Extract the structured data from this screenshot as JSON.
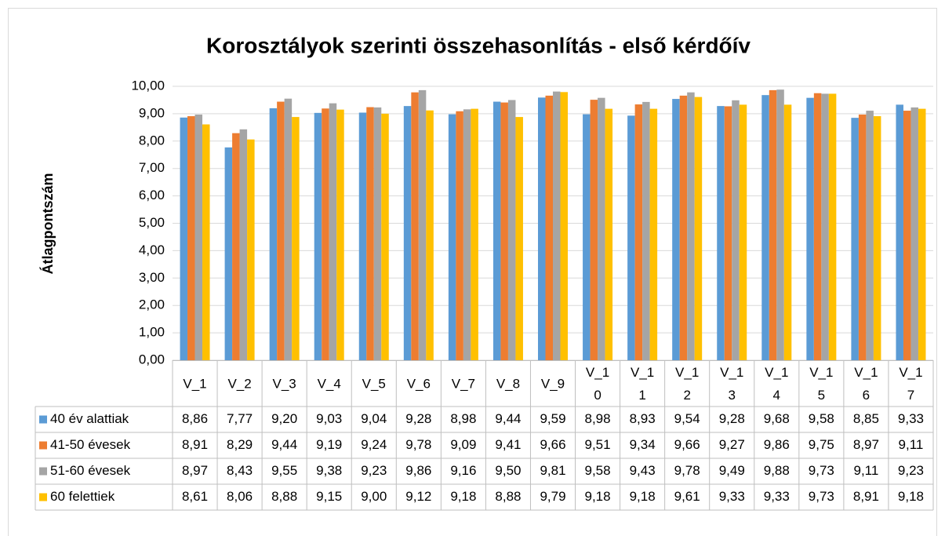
{
  "chart_data": {
    "type": "bar",
    "title": "Korosztályok szerinti összehasonlítás - első kérdőív",
    "y_label": "Átlagpontszám",
    "categories": [
      "V_1",
      "V_2",
      "V_3",
      "V_4",
      "V_5",
      "V_6",
      "V_7",
      "V_8",
      "V_9",
      "V_10",
      "V_11",
      "V_12",
      "V_13",
      "V_14",
      "V_15",
      "V_16",
      "V_17"
    ],
    "series": [
      {
        "name": "40 év alattiak",
        "color": "#5b9bd5",
        "values": [
          8.86,
          7.77,
          9.2,
          9.03,
          9.04,
          9.28,
          8.98,
          9.44,
          9.59,
          8.98,
          8.93,
          9.54,
          9.28,
          9.68,
          9.58,
          8.85,
          9.33
        ],
        "value_labels": [
          "8,86",
          "7,77",
          "9,20",
          "9,03",
          "9,04",
          "9,28",
          "8,98",
          "9,44",
          "9,59",
          "8,98",
          "8,93",
          "9,54",
          "9,28",
          "9,68",
          "9,58",
          "8,85",
          "9,33"
        ]
      },
      {
        "name": "41-50 évesek",
        "color": "#ed7d31",
        "values": [
          8.91,
          8.29,
          9.44,
          9.19,
          9.24,
          9.78,
          9.09,
          9.41,
          9.66,
          9.51,
          9.34,
          9.66,
          9.27,
          9.86,
          9.75,
          8.97,
          9.11
        ],
        "value_labels": [
          "8,91",
          "8,29",
          "9,44",
          "9,19",
          "9,24",
          "9,78",
          "9,09",
          "9,41",
          "9,66",
          "9,51",
          "9,34",
          "9,66",
          "9,27",
          "9,86",
          "9,75",
          "8,97",
          "9,11"
        ]
      },
      {
        "name": "51-60 évesek",
        "color": "#a5a5a5",
        "values": [
          8.97,
          8.43,
          9.55,
          9.38,
          9.23,
          9.86,
          9.16,
          9.5,
          9.81,
          9.58,
          9.43,
          9.78,
          9.49,
          9.88,
          9.73,
          9.11,
          9.23
        ],
        "value_labels": [
          "8,97",
          "8,43",
          "9,55",
          "9,38",
          "9,23",
          "9,86",
          "9,16",
          "9,50",
          "9,81",
          "9,58",
          "9,43",
          "9,78",
          "9,49",
          "9,88",
          "9,73",
          "9,11",
          "9,23"
        ]
      },
      {
        "name": "60 felettiek",
        "color": "#ffc000",
        "values": [
          8.61,
          8.06,
          8.88,
          9.15,
          9.0,
          9.12,
          9.18,
          8.88,
          9.79,
          9.18,
          9.18,
          9.61,
          9.33,
          9.33,
          9.73,
          8.91,
          9.18
        ],
        "value_labels": [
          "8,61",
          "8,06",
          "8,88",
          "9,15",
          "9,00",
          "9,12",
          "9,18",
          "8,88",
          "9,79",
          "9,18",
          "9,18",
          "9,61",
          "9,33",
          "9,33",
          "9,73",
          "8,91",
          "9,18"
        ]
      }
    ],
    "ylim": [
      0,
      10
    ],
    "yticks": [
      {
        "value": 0,
        "label": "0,00"
      },
      {
        "value": 1,
        "label": "1,00"
      },
      {
        "value": 2,
        "label": "2,00"
      },
      {
        "value": 3,
        "label": "3,00"
      },
      {
        "value": 4,
        "label": "4,00"
      },
      {
        "value": 5,
        "label": "5,00"
      },
      {
        "value": 6,
        "label": "6,00"
      },
      {
        "value": 7,
        "label": "7,00"
      },
      {
        "value": 8,
        "label": "8,00"
      },
      {
        "value": 9,
        "label": "9,00"
      },
      {
        "value": 10,
        "label": "10,00"
      }
    ],
    "grid": true
  }
}
